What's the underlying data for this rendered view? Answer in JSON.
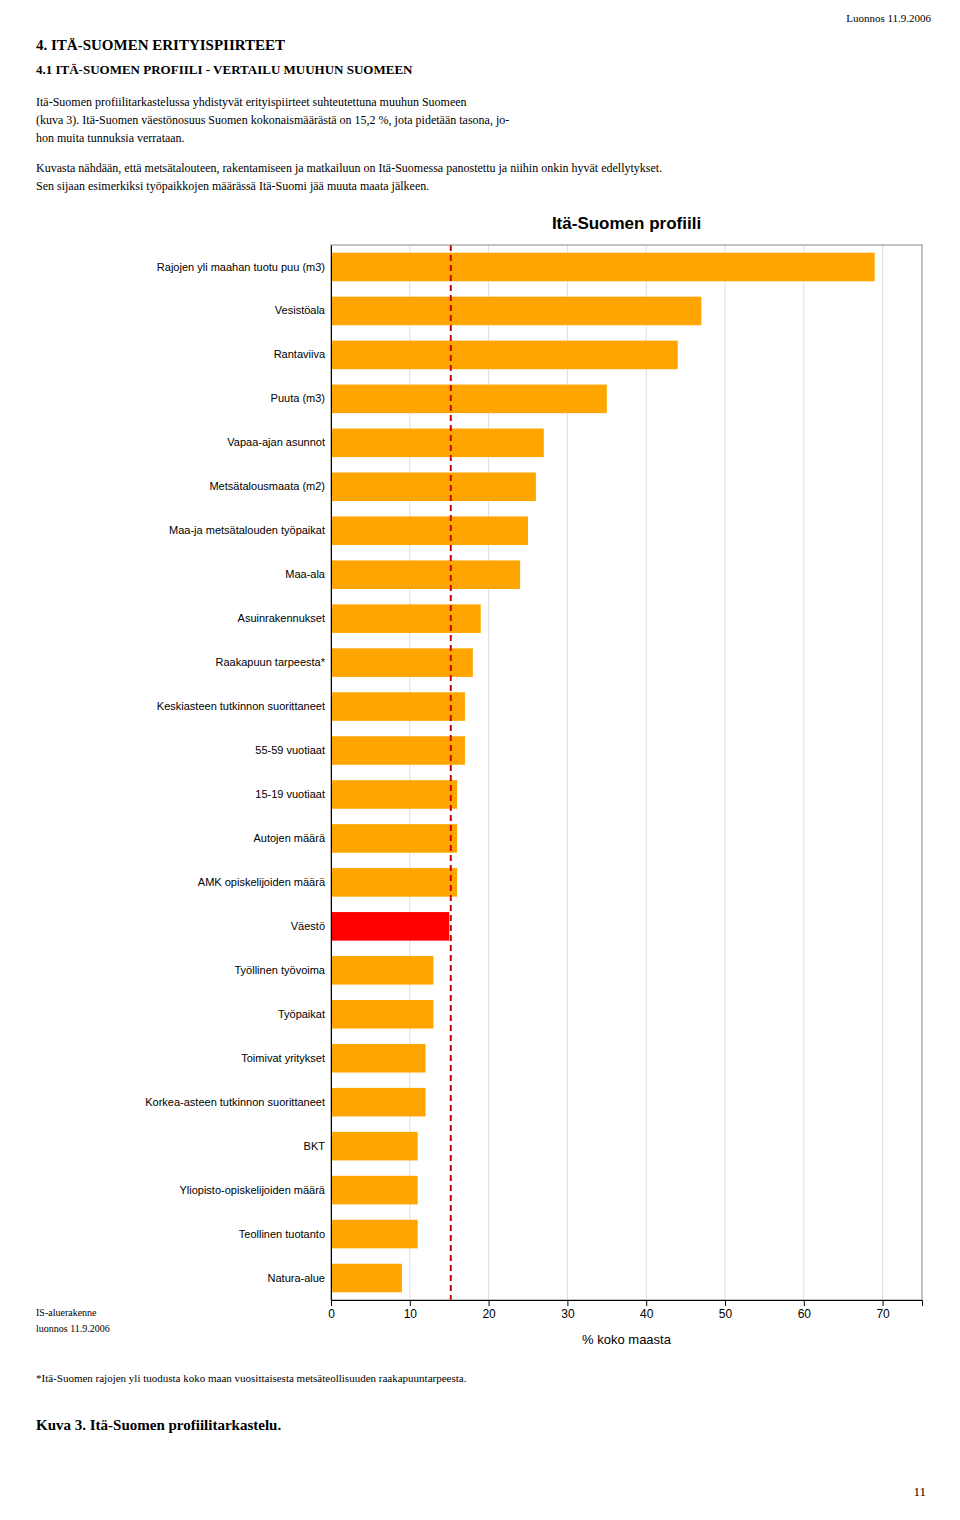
{
  "chart_data": {
    "type": "bar",
    "orientation": "horizontal",
    "title": "Itä-Suomen profiili",
    "categories": [
      "Rajojen yli maahan tuotu puu (m3)",
      "Vesistöala",
      "Rantaviiva",
      "Puuta (m3)",
      "Vapaa-ajan asunnot",
      "Metsätalousmaata (m2)",
      "Maa-ja metsätalouden työpaikat",
      "Maa-ala",
      "Asuinrakennukset",
      "Raakapuun tarpeesta*",
      "Keskiasteen tutkinnon suorittaneet",
      "55-59 vuotiaat",
      "15-19 vuotiaat",
      "Autojen määrä",
      "AMK opiskelijoiden määrä",
      "Väestö",
      "Työllinen työvoima",
      "Työpaikat",
      "Toimivat yritykset",
      "Korkea-asteen tutkinnon suorittaneet",
      "BKT",
      "Yliopisto-opiskelijoiden määrä",
      "Teollinen tuotanto",
      "Natura-alue"
    ],
    "values": [
      69,
      47,
      44,
      35,
      27,
      26,
      25,
      24,
      19,
      18,
      17,
      17,
      16,
      16,
      16,
      15,
      13,
      13,
      12,
      12,
      11,
      11,
      11,
      9
    ],
    "colors": [
      "#FFA500",
      "#FFA500",
      "#FFA500",
      "#FFA500",
      "#FFA500",
      "#FFA500",
      "#FFA500",
      "#FFA500",
      "#FFA500",
      "#FFA500",
      "#FFA500",
      "#FFA500",
      "#FFA500",
      "#FFA500",
      "#FFA500",
      "#FF0000",
      "#FFA500",
      "#FFA500",
      "#FFA500",
      "#FFA500",
      "#FFA500",
      "#FFA500",
      "#FFA500",
      "#FFA500"
    ],
    "xlabel": "% koko maasta",
    "xlim": [
      0,
      75
    ],
    "xticks": [
      0,
      10,
      20,
      30,
      40,
      50,
      60,
      70
    ],
    "grid": true,
    "reference_line": {
      "value": 15.2,
      "color": "#CC0000"
    }
  },
  "page": {
    "header": "Luonnos 11.9.2006",
    "section_title": "4. ITÄ-SUOMEN ERITYISPIIRTEET",
    "subsection_title": "4.1 ITÄ-SUOMEN PROFIILI - VERTAILU MUUHUN SUOMEEN",
    "paragraphs": [
      [
        "Itä-Suomen profiilitarkastelussa yhdistyvät erityispiirteet suhteutettuna muuhun Suomeen",
        "(kuva 3). Itä-Suomen väestönosuus Suomen kokonaismäärästä on 15,2 %, jota pidetään tasona, jo-",
        "hon muita tunnuksia verrataan."
      ],
      [
        "Kuvasta nähdään, että metsätalouteen, rakentamiseen ja matkailuun on Itä-Suomessa panostettu ja niihin onkin hyvät edellytykset.",
        "Sen sijaan esimerkiksi työpaikkojen määrässä Itä-Suomi jää muuta maata jälkeen."
      ]
    ],
    "source_labels": [
      "IS-aluerakenne",
      "luonnos 11.9.2006"
    ],
    "footnote": "*Itä-Suomen rajojen yli tuodusta koko maan vuosittaisesta metsäteollisuuden raakapuuntarpeesta.",
    "caption": "Kuva 3. Itä-Suomen profiilitarkastelu.",
    "page_number": "11"
  }
}
